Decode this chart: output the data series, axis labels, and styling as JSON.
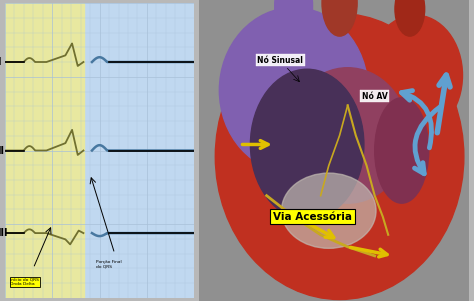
{
  "bg_color": "#b8b8b8",
  "ecg_bg_yellow": "#e8e8a0",
  "ecg_bg_blue": "#c0d8f0",
  "grid_major": "#a8c0d8",
  "grid_minor": "#c8dce8",
  "olive": "#707030",
  "blue_trace": "#4878a0",
  "black": "#000000",
  "white": "#ffffff",
  "yellow": "#ffff00",
  "yellow_arrow": "#e0c000",
  "blue_arrow": "#60a0d0",
  "heart_red": "#c03020",
  "heart_red2": "#a02818",
  "heart_purple": "#8060b0",
  "heart_dark": "#603850",
  "heart_cavity": "#483058",
  "heart_lv": "#784068",
  "heart_gray": "#c0b8b0",
  "heart_bg": "#909090",
  "label_I": "I",
  "label_II": "II",
  "label_III": "III",
  "ann1": "Início do QRS\nOnda Delta",
  "ann2": "Porção Final\ndo QRS",
  "lbl_sinusal": "Nó Sinusal",
  "lbl_av": "Nó AV",
  "lbl_via": "Via Acessória"
}
